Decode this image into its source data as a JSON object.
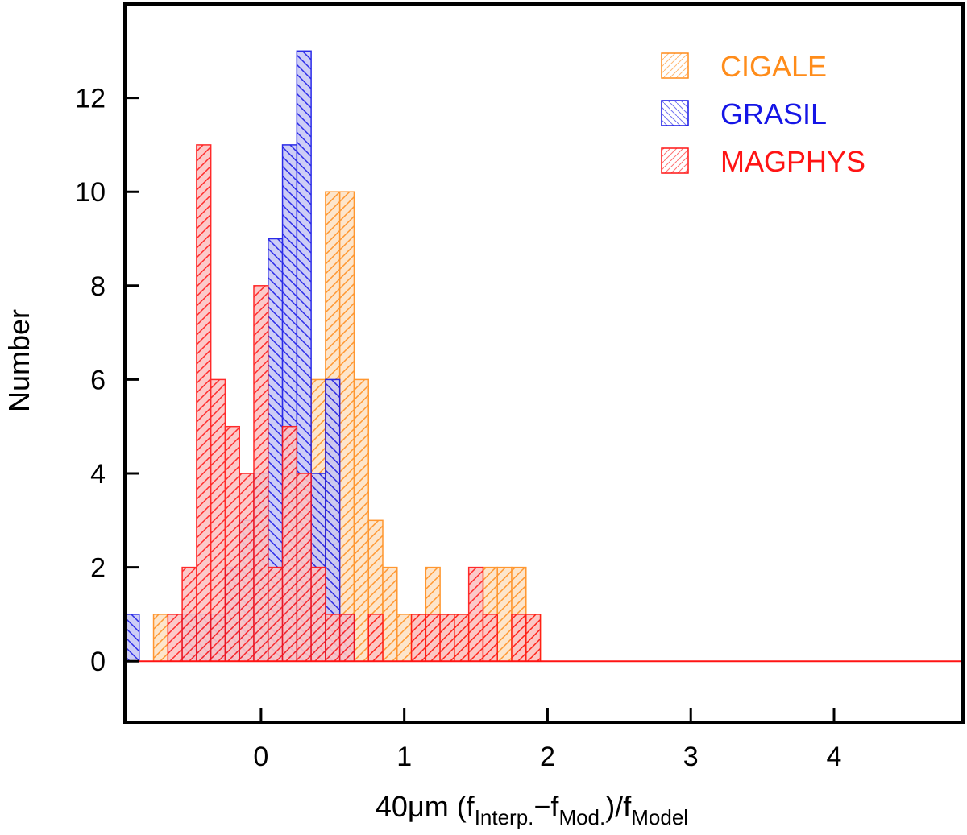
{
  "chart_data": {
    "type": "histogram",
    "title": "",
    "xlabel": {
      "prefix": "40",
      "mu": "μ",
      "unit": "m (f",
      "sub1": "Interp.",
      "minus": "−f",
      "sub2": "Mod.",
      "slash": ")/f",
      "sub3": "Model"
    },
    "ylabel": "Number",
    "xlim": [
      -0.95,
      4.9
    ],
    "ylim": [
      -1.3,
      14
    ],
    "bin_width": 0.1,
    "x_ticks": [
      0,
      1,
      2,
      3,
      4
    ],
    "x_tick_labels": [
      "0",
      "1",
      "2",
      "3",
      "4"
    ],
    "y_ticks": [
      0,
      2,
      4,
      6,
      8,
      10,
      12
    ],
    "y_tick_labels": [
      "0",
      "2",
      "4",
      "6",
      "8",
      "10",
      "12"
    ],
    "legend_position": "top-right",
    "series": [
      {
        "name": "CIGALE",
        "color": "#ff8c1a",
        "fill": "#fde3c6",
        "hatch": "forward",
        "bins_start": -0.75,
        "counts": [
          1,
          0,
          1,
          1,
          1,
          2,
          2,
          2,
          2,
          1,
          1,
          6,
          10,
          10,
          6,
          3,
          2,
          1,
          1,
          2,
          1,
          1,
          1,
          2,
          2,
          2,
          1
        ]
      },
      {
        "name": "GRASIL",
        "color": "#1515e6",
        "fill": "#c8c8f6",
        "hatch": "backward",
        "bins_start": -0.95,
        "counts": [
          1,
          0,
          0,
          0,
          1,
          1,
          1,
          2,
          3,
          4,
          9,
          11,
          13,
          4,
          6,
          1
        ]
      },
      {
        "name": "MAGPHYS",
        "color": "#ff1414",
        "fill": "#fcc4c4",
        "hatch": "forward",
        "bins_start": -0.65,
        "counts": [
          1,
          2,
          11,
          6,
          5,
          4,
          8,
          2,
          5,
          4,
          2,
          1,
          1,
          0,
          1,
          0,
          0,
          1,
          1,
          1,
          1,
          2,
          1,
          0,
          1,
          1
        ]
      }
    ]
  }
}
